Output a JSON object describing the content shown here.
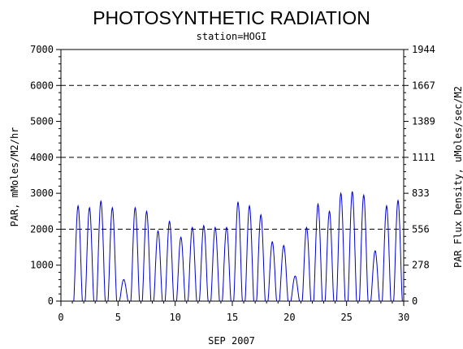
{
  "chart_data": {
    "type": "line",
    "title": "PHOTOSYNTHETIC RADIATION",
    "subtitle": "station=HOGI",
    "xlabel": "SEP 2007",
    "ylabel": "PAR, mMoles/M2/hr",
    "ylabel_right": "PAR Flux Density, uMoles/sec/M2",
    "xlim": [
      0,
      30
    ],
    "ylim": [
      0,
      7000
    ],
    "x_ticks": [
      0,
      5,
      10,
      15,
      20,
      25,
      30
    ],
    "x_tick_labels": [
      "0",
      "5",
      "10",
      "15",
      "20",
      "25",
      "30"
    ],
    "y_ticks": [
      0,
      1000,
      2000,
      3000,
      4000,
      5000,
      6000,
      7000
    ],
    "y_tick_labels": [
      "0",
      "1000",
      "2000",
      "3000",
      "4000",
      "5000",
      "6000",
      "7000"
    ],
    "y_right_tick_labels": [
      "0",
      "278",
      "556",
      "833",
      "1111",
      "1389",
      "1667",
      "1944"
    ],
    "gridlines_y": [
      2000,
      4000,
      6000
    ],
    "grid_style": "dashed",
    "line_color": "#0000cc",
    "series": [
      {
        "peaks": [
          [
            1.5,
            2650
          ],
          [
            2.5,
            2600
          ],
          [
            3.5,
            2780
          ],
          [
            4.5,
            2600
          ],
          [
            5.5,
            600
          ],
          [
            6.5,
            2600
          ],
          [
            7.5,
            2500
          ],
          [
            8.5,
            1950
          ],
          [
            9.5,
            2220
          ],
          [
            10.5,
            1780
          ],
          [
            11.5,
            2050
          ],
          [
            12.5,
            2100
          ],
          [
            13.5,
            2050
          ],
          [
            14.5,
            2050
          ],
          [
            15.5,
            2750
          ],
          [
            16.5,
            2650
          ],
          [
            17.5,
            2400
          ],
          [
            18.5,
            1650
          ],
          [
            19.5,
            1550
          ],
          [
            20.5,
            700
          ],
          [
            21.5,
            2050
          ],
          [
            22.5,
            2700
          ],
          [
            23.5,
            2500
          ],
          [
            24.5,
            3000
          ],
          [
            25.5,
            3050
          ],
          [
            26.5,
            2950
          ],
          [
            27.5,
            1400
          ],
          [
            28.5,
            2650
          ],
          [
            29.5,
            2800
          ]
        ]
      }
    ]
  }
}
